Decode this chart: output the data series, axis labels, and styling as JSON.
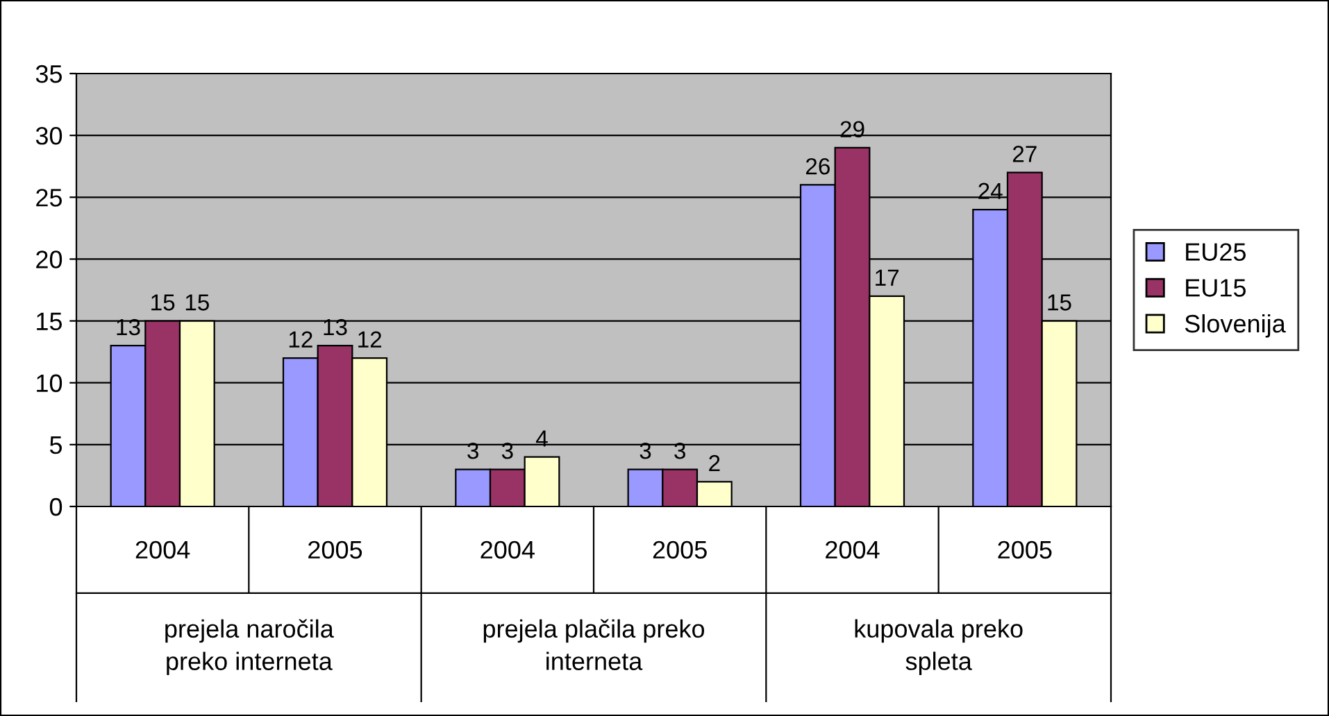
{
  "chart_data": {
    "type": "bar",
    "categories": [
      "2004",
      "2005",
      "2004",
      "2005",
      "2004",
      "2005"
    ],
    "series": [
      {
        "name": "EU25",
        "color": "#9999ff",
        "values": [
          13,
          12,
          3,
          3,
          26,
          24
        ]
      },
      {
        "name": "EU15",
        "color": "#993366",
        "values": [
          15,
          13,
          3,
          3,
          29,
          27
        ]
      },
      {
        "name": "Slovenija",
        "color": "#ffffcc",
        "values": [
          15,
          12,
          4,
          2,
          17,
          15
        ]
      }
    ],
    "annotations": [
      "prejela naročila\npreko interneta",
      "prejela plačila preko\ninterneta",
      "kupovala preko\nspleta"
    ],
    "ylim": [
      0,
      35
    ],
    "yticks": [
      0,
      5,
      10,
      15,
      20,
      25,
      30,
      35
    ],
    "grid": "y",
    "legend": "right",
    "data_labels": true
  }
}
